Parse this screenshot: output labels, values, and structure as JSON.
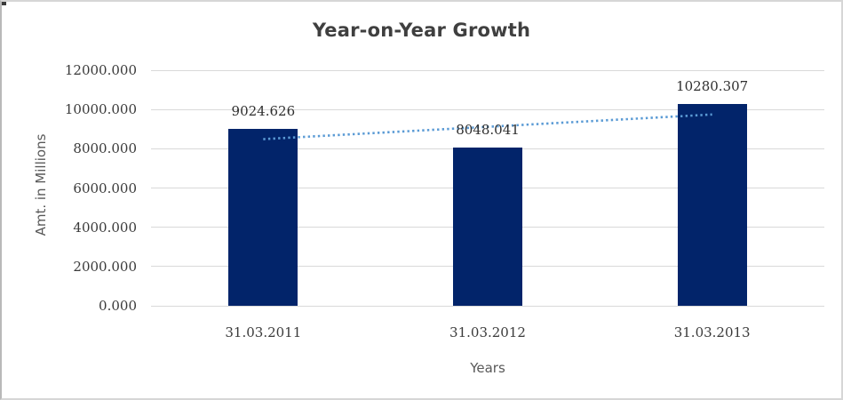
{
  "chart_data": {
    "type": "bar",
    "title": "Year-on-Year Growth",
    "xlabel": "Years",
    "ylabel": "Amt. in Millions",
    "categories": [
      "31.03.2011",
      "31.03.2012",
      "31.03.2013"
    ],
    "values": [
      9024.626,
      8048.041,
      10280.307
    ],
    "data_labels": [
      "9024.626",
      "8048.041",
      "10280.307"
    ],
    "ytick_labels": [
      "0.000",
      "2000.000",
      "4000.000",
      "6000.000",
      "8000.000",
      "10000.000",
      "12000.000"
    ],
    "ytick_values": [
      0,
      2000,
      4000,
      6000,
      8000,
      10000,
      12000
    ],
    "ylim": [
      0,
      12000
    ],
    "grid": true,
    "legend": "none",
    "trendline": {
      "type": "linear",
      "style": "dotted"
    },
    "colors": {
      "bar": "#02246A",
      "trendline": "#5b9bd5",
      "gridline": "#d9d9d9",
      "title": "#3f3f3f",
      "tick_label": "#3a3a3a",
      "axis_title": "#595959",
      "frame": "#d6d6d6"
    }
  }
}
